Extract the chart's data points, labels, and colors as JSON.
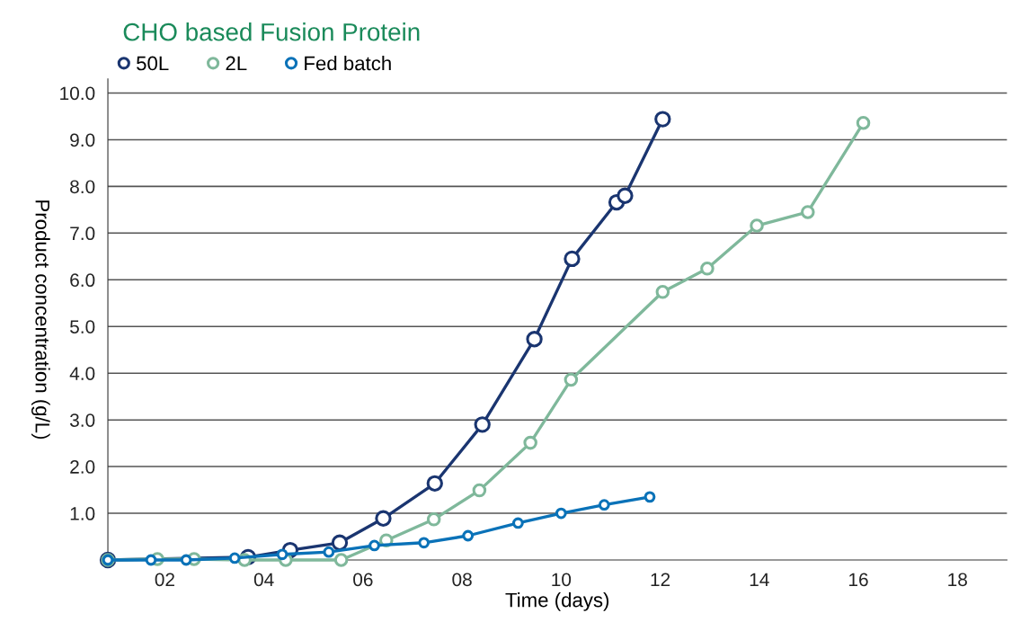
{
  "chart_data": {
    "type": "line",
    "title": "CHO based Fusion Protein",
    "xlabel": "Time (days)",
    "ylabel": "Product concentration (g/L)",
    "xlim": [
      0.85,
      19
    ],
    "xticks": [
      {
        "value": 2,
        "label": "02"
      },
      {
        "value": 4,
        "label": "04"
      },
      {
        "value": 6,
        "label": "06"
      },
      {
        "value": 8,
        "label": "08"
      },
      10,
      12,
      14,
      16,
      18
    ],
    "ylim": [
      0,
      10.3
    ],
    "yticks": [
      {
        "value": 1,
        "label": "1.0"
      },
      {
        "value": 2,
        "label": "2.0"
      },
      {
        "value": 3,
        "label": "3.0"
      },
      {
        "value": 4,
        "label": "4.0"
      },
      {
        "value": 5,
        "label": "5.0"
      },
      {
        "value": 6,
        "label": "6.0"
      },
      {
        "value": 7,
        "label": "7.0"
      },
      {
        "value": 8,
        "label": "8.0"
      },
      {
        "value": 9,
        "label": "9.0"
      },
      {
        "value": 10,
        "label": "10.0"
      }
    ],
    "grid": "y",
    "legend": "top left",
    "marker": "circle",
    "line_style": "solid",
    "series": [
      {
        "name": "50L",
        "color": "#1a3570",
        "x": [
          0.85,
          3.68,
          4.53,
          5.53,
          6.41,
          7.45,
          8.41,
          9.46,
          10.22,
          11.12,
          11.29,
          12.05
        ],
        "values": [
          0,
          0.06,
          0.21,
          0.37,
          0.89,
          1.64,
          2.9,
          4.73,
          6.45,
          7.66,
          7.8,
          9.44
        ]
      },
      {
        "name": "2L",
        "color": "#7fb89b",
        "x": [
          0.85,
          1.85,
          2.59,
          3.61,
          4.44,
          5.56,
          6.47,
          7.43,
          8.35,
          9.38,
          10.2,
          12.05,
          12.95,
          13.95,
          14.98,
          16.1
        ],
        "values": [
          0,
          0.02,
          0.02,
          0,
          0,
          0,
          0.42,
          0.87,
          1.49,
          2.51,
          3.86,
          5.74,
          6.24,
          7.16,
          7.45,
          9.36
        ]
      },
      {
        "name": "Fed batch",
        "color": "#0a72b8",
        "x": [
          0.85,
          1.72,
          2.43,
          3.41,
          4.37,
          5.31,
          6.23,
          7.23,
          8.12,
          9.13,
          10.0,
          10.87,
          11.79
        ],
        "values": [
          0,
          0,
          0,
          0.04,
          0.12,
          0.17,
          0.31,
          0.37,
          0.52,
          0.79,
          1.0,
          1.18,
          1.35
        ]
      }
    ]
  }
}
